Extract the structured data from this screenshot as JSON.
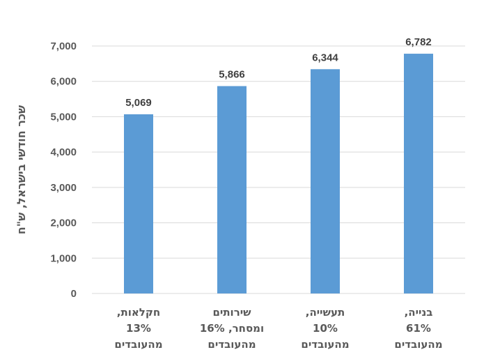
{
  "chart_data": {
    "type": "bar",
    "categories": [
      [
        "חקלאות,",
        "13%",
        "מהעובדים"
      ],
      [
        "שירותים",
        "ומסחר, 16%",
        "מהעובדים"
      ],
      [
        "תעשייה,",
        "10%",
        "מהעובדים"
      ],
      [
        "בנייה,",
        "61%",
        "מהעובדים"
      ]
    ],
    "values": [
      5069,
      5866,
      6344,
      6782
    ],
    "data_labels": [
      "5,069",
      "5,866",
      "6,344",
      "6,782"
    ],
    "ylabel": "שכר חודשי בישראל, ש\"ח",
    "yticks": [
      "0",
      "1,000",
      "2,000",
      "3,000",
      "4,000",
      "5,000",
      "6,000",
      "7,000"
    ],
    "ylim": [
      0,
      7000
    ],
    "grid": true,
    "bar_color": "#5b9bd5"
  }
}
